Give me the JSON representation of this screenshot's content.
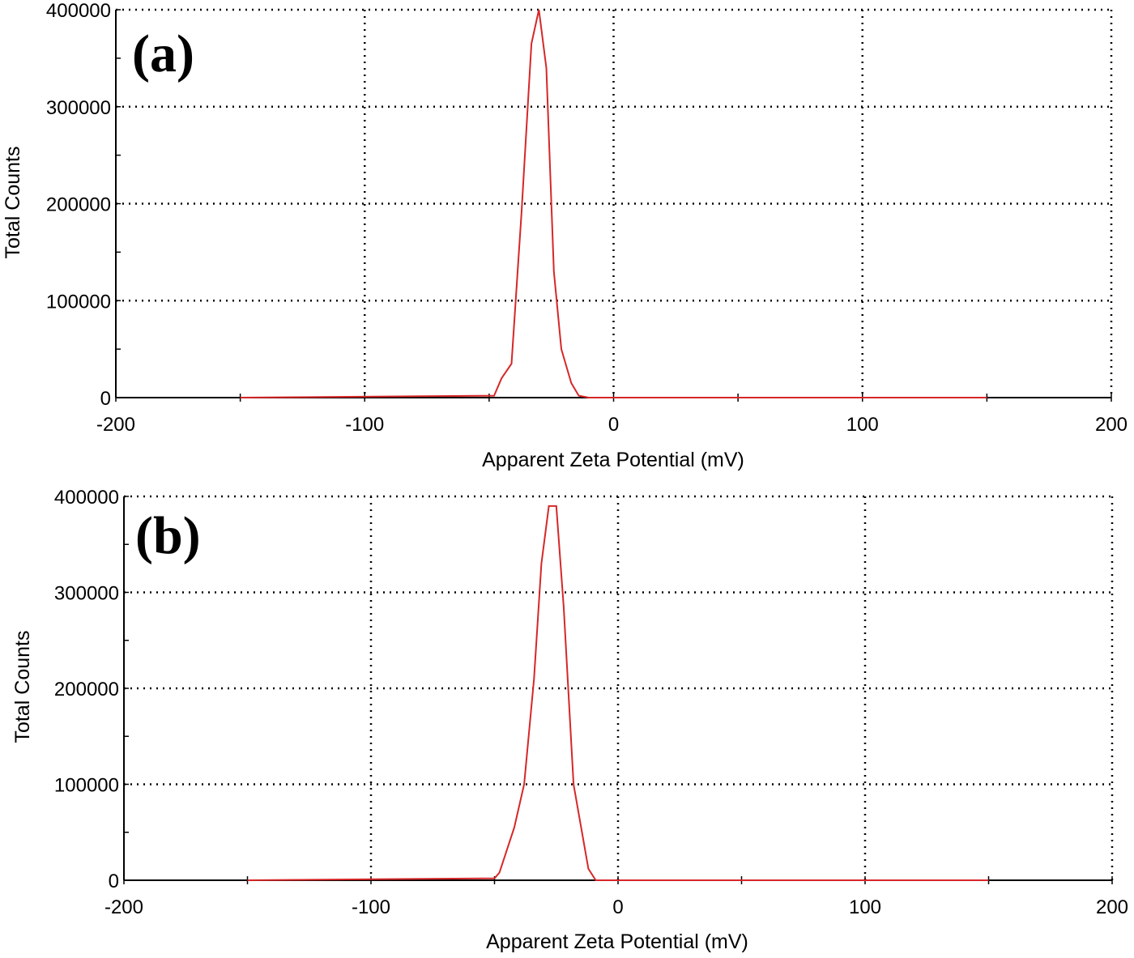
{
  "chart_data": [
    {
      "type": "line",
      "panel_label": "(a)",
      "xlabel": "Apparent Zeta Potential (mV)",
      "ylabel": "Total Counts",
      "xlim": [
        -200,
        200
      ],
      "ylim": [
        0,
        400000
      ],
      "x_ticks": [
        "-200",
        "-100",
        "0",
        "100",
        "200"
      ],
      "x_tick_values": [
        -200,
        -100,
        0,
        100,
        200
      ],
      "y_ticks": [
        "0",
        "100000",
        "200000",
        "300000",
        "400000"
      ],
      "y_tick_values": [
        0,
        100000,
        200000,
        300000,
        400000
      ],
      "grid": true,
      "series_color": "#d62728",
      "series": [
        {
          "x": [
            -150,
            -48,
            -45,
            -41,
            -37,
            -33,
            -30,
            -27,
            -24,
            -21,
            -17,
            -14,
            -10,
            150
          ],
          "y": [
            0,
            2000,
            20000,
            35000,
            190000,
            365000,
            400000,
            340000,
            130000,
            50000,
            15000,
            2000,
            0,
            0
          ]
        }
      ]
    },
    {
      "type": "line",
      "panel_label": "(b)",
      "xlabel": "Apparent Zeta Potential (mV)",
      "ylabel": "Total Counts",
      "xlim": [
        -200,
        200
      ],
      "ylim": [
        0,
        400000
      ],
      "x_ticks": [
        "-200",
        "-100",
        "0",
        "100",
        "200"
      ],
      "x_tick_values": [
        -200,
        -100,
        0,
        100,
        200
      ],
      "y_ticks": [
        "0",
        "100000",
        "200000",
        "300000",
        "400000"
      ],
      "y_tick_values": [
        0,
        100000,
        200000,
        300000,
        400000
      ],
      "grid": true,
      "series_color": "#d62728",
      "series": [
        {
          "x": [
            -150,
            -50,
            -48,
            -42,
            -38,
            -34,
            -31,
            -28,
            -25,
            -22,
            -18,
            -12,
            -9,
            150
          ],
          "y": [
            0,
            2000,
            8000,
            55000,
            100000,
            210000,
            330000,
            390000,
            390000,
            285000,
            100000,
            12000,
            0,
            0
          ]
        }
      ]
    }
  ]
}
